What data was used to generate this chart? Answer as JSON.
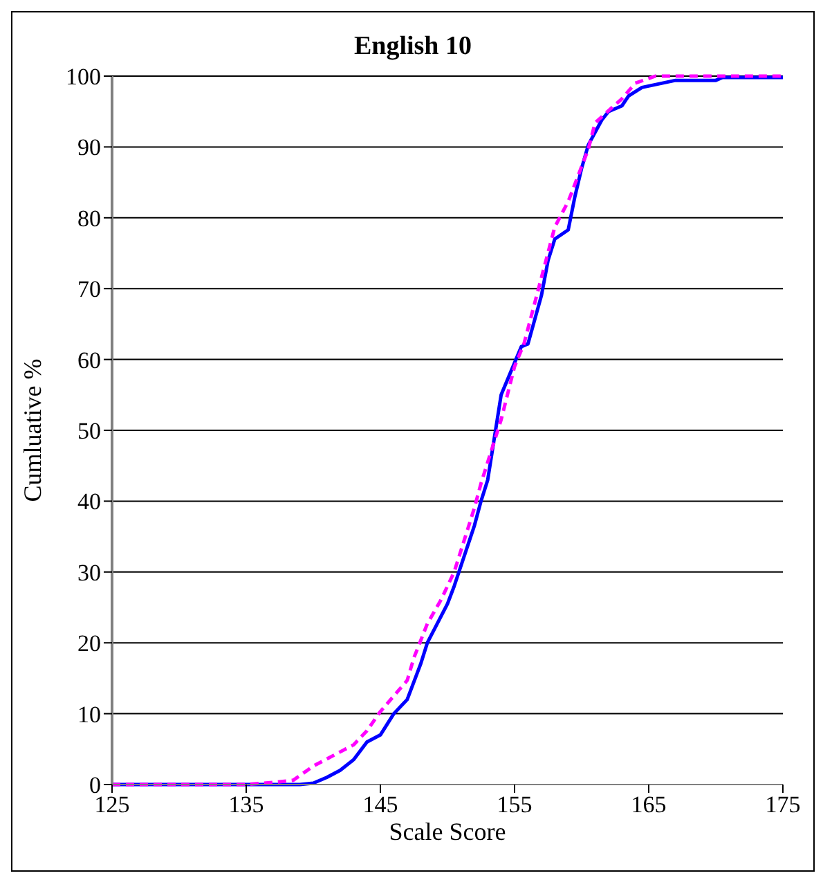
{
  "chart_data": {
    "type": "line",
    "title": "English 10",
    "xlabel": "Scale Score",
    "ylabel": "Cumluative %",
    "xlim": [
      125,
      175
    ],
    "xticks": [
      125,
      135,
      145,
      155,
      165,
      175
    ],
    "ylim": [
      0,
      100
    ],
    "yticks": [
      0,
      10,
      20,
      30,
      40,
      50,
      60,
      70,
      80,
      90,
      100
    ],
    "grid": "y",
    "legend": false,
    "marker": "none",
    "series": [
      {
        "color": "#0000ff",
        "line_style": "solid",
        "x": [
          125,
          130,
          135,
          139,
          140,
          141,
          142,
          143,
          144,
          145,
          146,
          147,
          148,
          148.5,
          150,
          150.5,
          152,
          152.5,
          153,
          153.5,
          154,
          155.5,
          156,
          157,
          157.5,
          158,
          159,
          159.5,
          160,
          160.5,
          161.5,
          162,
          163,
          163.5,
          164.5,
          167,
          170,
          170.5,
          175
        ],
        "values": [
          0,
          0,
          0,
          0,
          0.2,
          1,
          2,
          3.5,
          6,
          7,
          10,
          12,
          17,
          20,
          25.5,
          28,
          36.5,
          40,
          43,
          49,
          55,
          61.8,
          62.2,
          69,
          74,
          77,
          78.3,
          83,
          87,
          90.3,
          93.8,
          95,
          95.8,
          97.2,
          98.4,
          99.4,
          99.4,
          99.8,
          99.8
        ]
      },
      {
        "color": "#ff00ff",
        "line_style": "dashed",
        "x": [
          125,
          130,
          135,
          137,
          138.5,
          140,
          142,
          143,
          144,
          145,
          147,
          147.5,
          148.5,
          149.5,
          150.5,
          152,
          152.5,
          154,
          155,
          155.7,
          158,
          159,
          160.5,
          161,
          163,
          164,
          165.5,
          170,
          175
        ],
        "values": [
          0,
          0,
          0,
          0.3,
          0.6,
          2.6,
          4.6,
          5.6,
          7.6,
          10.3,
          14.7,
          17.9,
          22.7,
          26,
          30,
          39,
          42.5,
          51.5,
          59,
          62.2,
          78.7,
          82.3,
          89.7,
          93.4,
          96.8,
          99,
          100,
          100,
          100
        ]
      }
    ]
  }
}
